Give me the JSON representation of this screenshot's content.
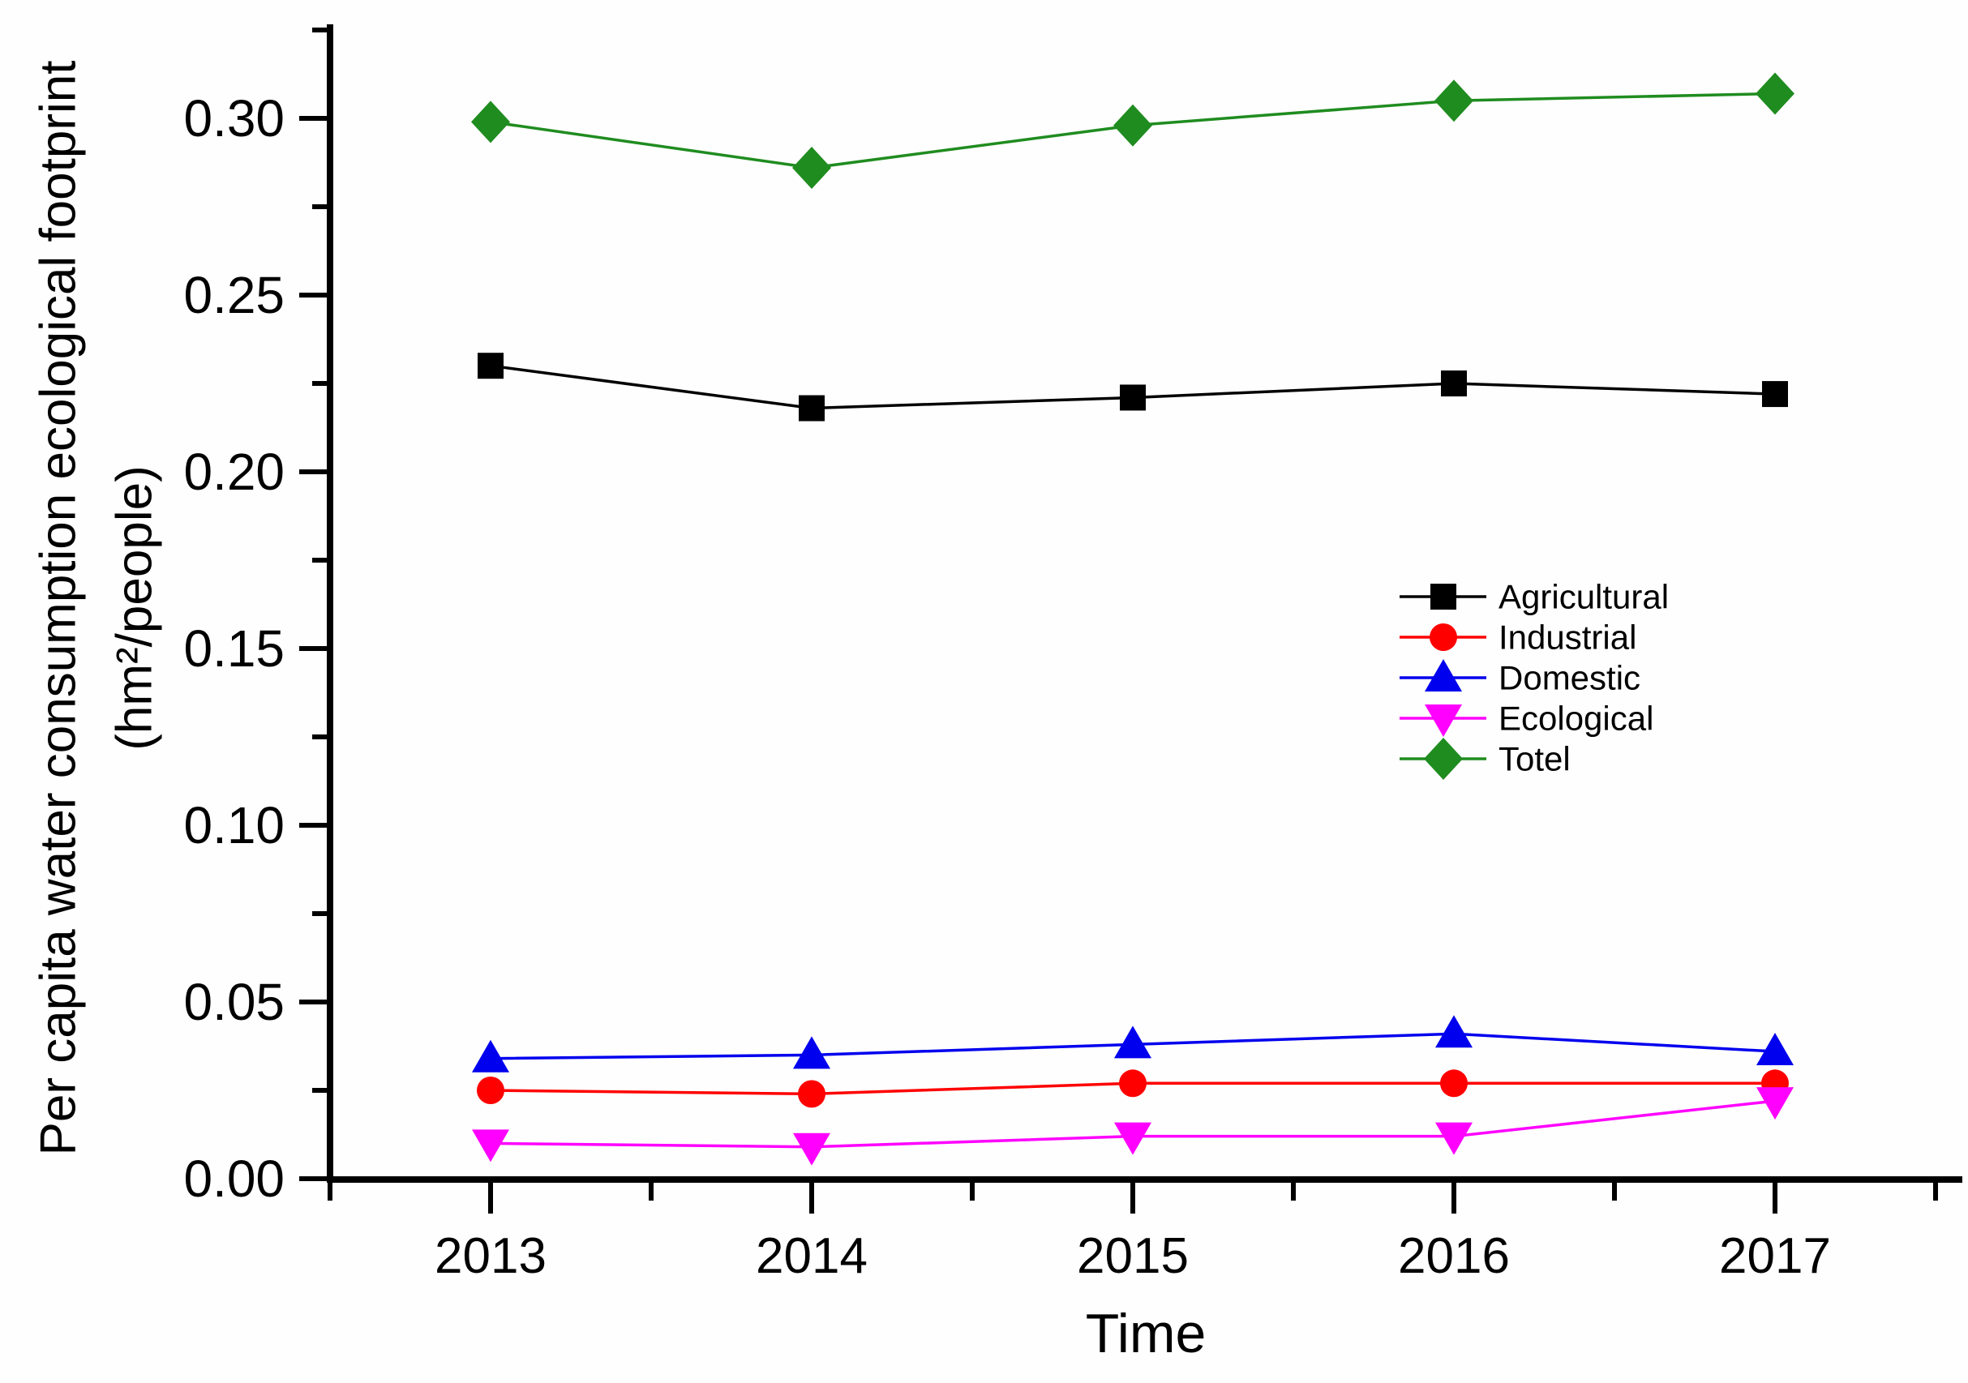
{
  "chart_data": {
    "type": "line",
    "title": "",
    "xlabel": "Time",
    "ylabel_line1": "Per capita water consumption ecological footprint",
    "ylabel_line2": "(hm²/people)",
    "x": [
      2013,
      2014,
      2015,
      2016,
      2017
    ],
    "x_tick_labels": [
      "2013",
      "2014",
      "2015",
      "2016",
      "2017"
    ],
    "y_tick_labels": [
      "0.00",
      "0.05",
      "0.10",
      "0.15",
      "0.20",
      "0.25",
      "0.30"
    ],
    "y_major_tick_values": [
      0.0,
      0.05,
      0.1,
      0.15,
      0.2,
      0.25,
      0.3
    ],
    "y_minor_tick_values": [
      0.025,
      0.075,
      0.125,
      0.175,
      0.225,
      0.275,
      0.325
    ],
    "x_minor_tick_values": [
      2012.5,
      2013.5,
      2014.5,
      2015.5,
      2016.5,
      2017.5
    ],
    "axis": {
      "x_min": 2012.5,
      "x_max": 2017.58,
      "y_min": 0.0,
      "y_max": 0.3265,
      "grid": false,
      "legend_position": "middle-right"
    },
    "series": [
      {
        "name": "Agricultural",
        "color": "#000000",
        "marker": "square",
        "values": [
          0.23,
          0.218,
          0.221,
          0.225,
          0.222
        ]
      },
      {
        "name": "Industrial",
        "color": "#ff0000",
        "marker": "circle",
        "values": [
          0.025,
          0.024,
          0.027,
          0.027,
          0.027
        ]
      },
      {
        "name": "Domestic",
        "color": "#0000ee",
        "marker": "triangle-up",
        "values": [
          0.034,
          0.035,
          0.038,
          0.041,
          0.036
        ]
      },
      {
        "name": "Ecological",
        "color": "#ff00ff",
        "marker": "triangle-down",
        "values": [
          0.01,
          0.009,
          0.012,
          0.012,
          0.022
        ]
      },
      {
        "name": "Totel",
        "color": "#1f8c1f",
        "marker": "diamond",
        "values": [
          0.299,
          0.286,
          0.298,
          0.305,
          0.307
        ]
      }
    ]
  }
}
